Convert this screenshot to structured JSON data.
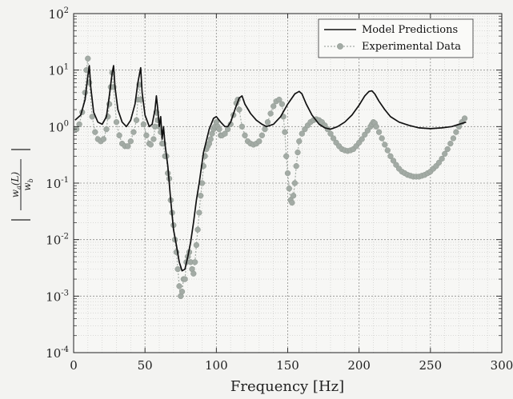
{
  "chart_data": {
    "type": "line",
    "xlabel": "Frequency [Hz]",
    "ylabel": "|w_a(L) / w_b|",
    "xlim": [
      0,
      300
    ],
    "ylim": [
      0.0001,
      100
    ],
    "yscale": "log",
    "grid": true,
    "legend_position": "top-right",
    "x_ticks": [
      "0",
      "50",
      "100",
      "150",
      "200",
      "250",
      "300"
    ],
    "y_ticks": [
      {
        "base": "10",
        "exp": "-4"
      },
      {
        "base": "10",
        "exp": "-3"
      },
      {
        "base": "10",
        "exp": "-2"
      },
      {
        "base": "10",
        "exp": "-1"
      },
      {
        "base": "10",
        "exp": "0"
      },
      {
        "base": "10",
        "exp": "1"
      },
      {
        "base": "10",
        "exp": "2"
      }
    ],
    "series": [
      {
        "name": "Model Predictions",
        "color": "#111111",
        "style": "solid",
        "points": [
          [
            1,
            1.3
          ],
          [
            5,
            1.6
          ],
          [
            8,
            3.0
          ],
          [
            10,
            8.0
          ],
          [
            11,
            12.0
          ],
          [
            12,
            5.0
          ],
          [
            14,
            1.8
          ],
          [
            17,
            1.2
          ],
          [
            20,
            1.1
          ],
          [
            23,
            1.5
          ],
          [
            25,
            3.5
          ],
          [
            27,
            9.0
          ],
          [
            28,
            12.0
          ],
          [
            29,
            5.0
          ],
          [
            31,
            2.0
          ],
          [
            34,
            1.2
          ],
          [
            37,
            1.0
          ],
          [
            40,
            1.3
          ],
          [
            43,
            2.5
          ],
          [
            45,
            6.0
          ],
          [
            47,
            11.0
          ],
          [
            48,
            4.0
          ],
          [
            50,
            1.6
          ],
          [
            53,
            1.0
          ],
          [
            55,
            1.1
          ],
          [
            57,
            2.0
          ],
          [
            58,
            3.5
          ],
          [
            59,
            2.0
          ],
          [
            60,
            1.0
          ],
          [
            61,
            1.5
          ],
          [
            62,
            0.6
          ],
          [
            63,
            1.0
          ],
          [
            64,
            0.5
          ],
          [
            66,
            0.2
          ],
          [
            68,
            0.05
          ],
          [
            70,
            0.015
          ],
          [
            72,
            0.008
          ],
          [
            74,
            0.004
          ],
          [
            76,
            0.0028
          ],
          [
            78,
            0.003
          ],
          [
            80,
            0.005
          ],
          [
            82,
            0.009
          ],
          [
            84,
            0.02
          ],
          [
            86,
            0.05
          ],
          [
            88,
            0.1
          ],
          [
            91,
            0.35
          ],
          [
            95,
            0.9
          ],
          [
            98,
            1.4
          ],
          [
            100,
            1.5
          ],
          [
            103,
            1.2
          ],
          [
            106,
            1.0
          ],
          [
            108,
            1.0
          ],
          [
            110,
            1.2
          ],
          [
            113,
            2.0
          ],
          [
            116,
            3.2
          ],
          [
            118,
            3.5
          ],
          [
            120,
            2.5
          ],
          [
            124,
            1.7
          ],
          [
            128,
            1.3
          ],
          [
            132,
            1.1
          ],
          [
            135,
            1.0
          ],
          [
            140,
            1.1
          ],
          [
            145,
            1.5
          ],
          [
            150,
            2.5
          ],
          [
            155,
            3.8
          ],
          [
            158,
            4.2
          ],
          [
            160,
            3.8
          ],
          [
            163,
            2.5
          ],
          [
            167,
            1.6
          ],
          [
            172,
            1.1
          ],
          [
            176,
            0.95
          ],
          [
            180,
            0.9
          ],
          [
            185,
            1.0
          ],
          [
            190,
            1.2
          ],
          [
            195,
            1.6
          ],
          [
            200,
            2.4
          ],
          [
            204,
            3.5
          ],
          [
            207,
            4.2
          ],
          [
            209,
            4.3
          ],
          [
            211,
            3.8
          ],
          [
            214,
            2.8
          ],
          [
            218,
            2.0
          ],
          [
            222,
            1.5
          ],
          [
            228,
            1.2
          ],
          [
            235,
            1.05
          ],
          [
            242,
            0.95
          ],
          [
            250,
            0.92
          ],
          [
            258,
            0.95
          ],
          [
            265,
            1.0
          ],
          [
            270,
            1.1
          ],
          [
            275,
            1.2
          ]
        ]
      },
      {
        "name": "Experimental Data",
        "color": "#a3aba5",
        "style": "dotted-markers",
        "points": [
          [
            2,
            0.9
          ],
          [
            4,
            1.1
          ],
          [
            6,
            1.8
          ],
          [
            8,
            4.0
          ],
          [
            9,
            10.0
          ],
          [
            10,
            16.0
          ],
          [
            11,
            6.0
          ],
          [
            13,
            1.5
          ],
          [
            15,
            0.8
          ],
          [
            17,
            0.6
          ],
          [
            19,
            0.55
          ],
          [
            21,
            0.6
          ],
          [
            23,
            0.9
          ],
          [
            24,
            1.5
          ],
          [
            25,
            2.5
          ],
          [
            26,
            5.0
          ],
          [
            27,
            9.0
          ],
          [
            28,
            5.0
          ],
          [
            30,
            1.2
          ],
          [
            32,
            0.7
          ],
          [
            34,
            0.5
          ],
          [
            36,
            0.45
          ],
          [
            38,
            0.45
          ],
          [
            40,
            0.55
          ],
          [
            42,
            0.8
          ],
          [
            44,
            1.3
          ],
          [
            45,
            3.0
          ],
          [
            46,
            5.5
          ],
          [
            47,
            3.0
          ],
          [
            49,
            1.1
          ],
          [
            51,
            0.7
          ],
          [
            53,
            0.5
          ],
          [
            54,
            0.48
          ],
          [
            56,
            0.6
          ],
          [
            57,
            1.0
          ],
          [
            58,
            1.8
          ],
          [
            59,
            1.3
          ],
          [
            60,
            1.0
          ],
          [
            61,
            0.8
          ],
          [
            62,
            0.5
          ],
          [
            63,
            0.5
          ],
          [
            64,
            0.3
          ],
          [
            65,
            0.3
          ],
          [
            66,
            0.15
          ],
          [
            67,
            0.12
          ],
          [
            68,
            0.05
          ],
          [
            69,
            0.03
          ],
          [
            70,
            0.018
          ],
          [
            71,
            0.01
          ],
          [
            72,
            0.006
          ],
          [
            73,
            0.003
          ],
          [
            74,
            0.0015
          ],
          [
            75,
            0.001
          ],
          [
            76,
            0.0012
          ],
          [
            77,
            0.002
          ],
          [
            78,
            0.002
          ],
          [
            79,
            0.004
          ],
          [
            80,
            0.005
          ],
          [
            81,
            0.006
          ],
          [
            82,
            0.004
          ],
          [
            83,
            0.003
          ],
          [
            84,
            0.0025
          ],
          [
            85,
            0.004
          ],
          [
            86,
            0.008
          ],
          [
            87,
            0.015
          ],
          [
            88,
            0.03
          ],
          [
            89,
            0.06
          ],
          [
            90,
            0.1
          ],
          [
            91,
            0.2
          ],
          [
            92,
            0.3
          ],
          [
            93,
            0.4
          ],
          [
            94,
            0.45
          ],
          [
            95,
            0.5
          ],
          [
            96,
            0.6
          ],
          [
            97,
            0.75
          ],
          [
            98,
            0.9
          ],
          [
            99,
            1.0
          ],
          [
            100,
            1.2
          ],
          [
            101,
            1.0
          ],
          [
            102,
            0.9
          ],
          [
            103,
            0.7
          ],
          [
            104,
            0.7
          ],
          [
            106,
            0.75
          ],
          [
            108,
            0.9
          ],
          [
            110,
            1.1
          ],
          [
            112,
            1.6
          ],
          [
            114,
            2.6
          ],
          [
            115,
            3.0
          ],
          [
            116,
            2.0
          ],
          [
            118,
            1.0
          ],
          [
            120,
            0.7
          ],
          [
            122,
            0.55
          ],
          [
            124,
            0.5
          ],
          [
            126,
            0.48
          ],
          [
            128,
            0.5
          ],
          [
            130,
            0.55
          ],
          [
            132,
            0.7
          ],
          [
            134,
            0.9
          ],
          [
            136,
            1.2
          ],
          [
            138,
            1.7
          ],
          [
            140,
            2.3
          ],
          [
            142,
            2.8
          ],
          [
            144,
            3.0
          ],
          [
            146,
            2.5
          ],
          [
            147,
            1.5
          ],
          [
            148,
            0.8
          ],
          [
            149,
            0.3
          ],
          [
            150,
            0.15
          ],
          [
            151,
            0.08
          ],
          [
            152,
            0.05
          ],
          [
            153,
            0.045
          ],
          [
            154,
            0.06
          ],
          [
            155,
            0.1
          ],
          [
            156,
            0.2
          ],
          [
            157,
            0.35
          ],
          [
            158,
            0.55
          ],
          [
            160,
            0.75
          ],
          [
            162,
            0.9
          ],
          [
            164,
            1.05
          ],
          [
            166,
            1.2
          ],
          [
            168,
            1.3
          ],
          [
            170,
            1.35
          ],
          [
            172,
            1.3
          ],
          [
            174,
            1.2
          ],
          [
            176,
            1.05
          ],
          [
            178,
            0.9
          ],
          [
            180,
            0.75
          ],
          [
            182,
            0.62
          ],
          [
            184,
            0.52
          ],
          [
            186,
            0.45
          ],
          [
            188,
            0.4
          ],
          [
            190,
            0.38
          ],
          [
            192,
            0.37
          ],
          [
            194,
            0.38
          ],
          [
            196,
            0.4
          ],
          [
            198,
            0.45
          ],
          [
            200,
            0.52
          ],
          [
            202,
            0.6
          ],
          [
            204,
            0.72
          ],
          [
            206,
            0.85
          ],
          [
            208,
            1.0
          ],
          [
            209,
            1.1
          ],
          [
            210,
            1.2
          ],
          [
            211,
            1.15
          ],
          [
            212,
            1.0
          ],
          [
            214,
            0.8
          ],
          [
            216,
            0.62
          ],
          [
            218,
            0.48
          ],
          [
            220,
            0.38
          ],
          [
            222,
            0.3
          ],
          [
            224,
            0.25
          ],
          [
            226,
            0.21
          ],
          [
            228,
            0.18
          ],
          [
            230,
            0.16
          ],
          [
            232,
            0.15
          ],
          [
            234,
            0.14
          ],
          [
            236,
            0.135
          ],
          [
            238,
            0.13
          ],
          [
            240,
            0.13
          ],
          [
            242,
            0.13
          ],
          [
            244,
            0.135
          ],
          [
            246,
            0.14
          ],
          [
            248,
            0.15
          ],
          [
            250,
            0.16
          ],
          [
            252,
            0.18
          ],
          [
            254,
            0.2
          ],
          [
            256,
            0.23
          ],
          [
            258,
            0.27
          ],
          [
            260,
            0.33
          ],
          [
            262,
            0.4
          ],
          [
            264,
            0.5
          ],
          [
            266,
            0.62
          ],
          [
            268,
            0.8
          ],
          [
            270,
            1.0
          ],
          [
            272,
            1.2
          ],
          [
            274,
            1.4
          ]
        ]
      }
    ]
  }
}
